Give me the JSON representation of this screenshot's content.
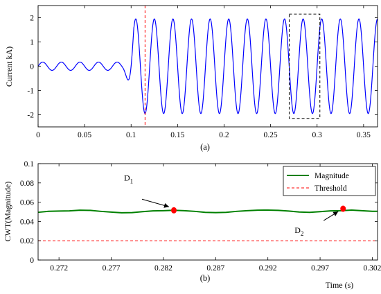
{
  "chart_data": [
    {
      "type": "line",
      "ylabel": "Current kA)",
      "caption": "(a)",
      "xlim": [
        0,
        0.365
      ],
      "ylim": [
        -2.5,
        2.5
      ],
      "xticks": [
        "0",
        "0.05",
        "0.1",
        "0.15",
        "0.2",
        "0.25",
        "0.3",
        "0.35"
      ],
      "yticks": [
        "-2",
        "-1",
        "0",
        "1",
        "2"
      ],
      "grid": false,
      "series": [
        {
          "color": "#0000ff",
          "frequency_hz": 50,
          "segments": [
            {
              "t_start": 0.0,
              "t_end": 0.09,
              "amplitude": 0.17,
              "offset": 0.0
            },
            {
              "t_start": 0.09,
              "t_end": 0.103,
              "amplitude": 0.17,
              "transition_to": 2.0
            },
            {
              "t_start": 0.103,
              "t_end": 0.365,
              "amplitude": 1.95,
              "offset": 0.0
            }
          ]
        }
      ],
      "markers": [
        {
          "type": "vertical_line",
          "x": 0.115,
          "color": "#ff0000",
          "style": "dashed"
        },
        {
          "type": "box",
          "x_range": [
            0.27,
            0.303
          ],
          "y_range": [
            -2.15,
            2.15
          ],
          "color": "#000000",
          "style": "dashed"
        }
      ]
    },
    {
      "type": "line",
      "xlabel": "Time (s)",
      "ylabel": "CWT(Magnitude)",
      "caption": "(b)",
      "xlim": [
        0.27,
        0.3025
      ],
      "ylim": [
        0,
        0.1
      ],
      "xticks": [
        "0.272",
        "0.277",
        "0.282",
        "0.287",
        "0.292",
        "0.297",
        "0.302"
      ],
      "yticks": [
        "0",
        "0.02",
        "0.04",
        "0.06",
        "0.08",
        "0.1"
      ],
      "grid": false,
      "legend": {
        "position": "top-right",
        "entries": [
          "Magnitude",
          "Threshold"
        ]
      },
      "series": [
        {
          "name": "Magnitude",
          "color": "#008000",
          "x": [
            0.27,
            0.271,
            0.272,
            0.273,
            0.274,
            0.275,
            0.276,
            0.277,
            0.278,
            0.279,
            0.28,
            0.281,
            0.282,
            0.283,
            0.284,
            0.285,
            0.286,
            0.287,
            0.288,
            0.289,
            0.29,
            0.291,
            0.292,
            0.293,
            0.294,
            0.295,
            0.296,
            0.297,
            0.298,
            0.299,
            0.3,
            0.301,
            0.302,
            0.3025
          ],
          "y": [
            0.0495,
            0.0505,
            0.0508,
            0.051,
            0.0517,
            0.0515,
            0.0505,
            0.0497,
            0.049,
            0.0492,
            0.0502,
            0.051,
            0.0512,
            0.0516,
            0.0512,
            0.0505,
            0.0495,
            0.0492,
            0.0495,
            0.0505,
            0.0512,
            0.0517,
            0.0518,
            0.0515,
            0.0508,
            0.0498,
            0.0495,
            0.0502,
            0.051,
            0.0512,
            0.0518,
            0.0512,
            0.0505,
            0.0505
          ]
        },
        {
          "name": "Threshold",
          "color": "#ff0000",
          "style": "dashed",
          "x": [
            0.27,
            0.3025
          ],
          "y": [
            0.02,
            0.02
          ]
        }
      ],
      "points": [
        {
          "label": "D",
          "subscript": "1",
          "x": 0.283,
          "y": 0.0516,
          "color": "#ff0000"
        },
        {
          "label": "D",
          "subscript": "2",
          "x": 0.2992,
          "y": 0.0532,
          "color": "#ff0000"
        }
      ]
    }
  ]
}
